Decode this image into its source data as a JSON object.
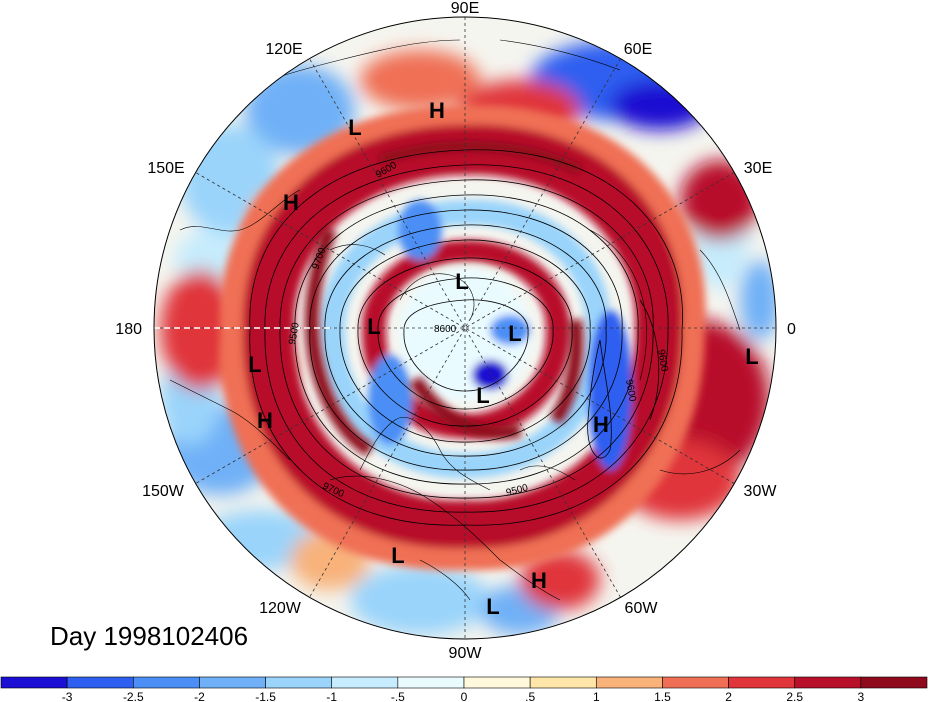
{
  "title": "Day 1998102406",
  "longitude_labels": [
    "90E",
    "60E",
    "30E",
    "0",
    "30W",
    "60W",
    "90W",
    "120W",
    "150W",
    "180",
    "150E",
    "120E"
  ],
  "pressure_systems": [
    {
      "type": "H",
      "name": "pressure-high"
    },
    {
      "type": "L",
      "name": "pressure-low"
    },
    {
      "type": "H",
      "name": "pressure-high"
    },
    {
      "type": "L",
      "name": "pressure-low"
    },
    {
      "type": "L",
      "name": "pressure-low"
    },
    {
      "type": "L",
      "name": "pressure-low"
    },
    {
      "type": "L",
      "name": "pressure-low"
    },
    {
      "type": "L",
      "name": "pressure-low"
    },
    {
      "type": "H",
      "name": "pressure-high"
    },
    {
      "type": "L",
      "name": "pressure-low"
    },
    {
      "type": "H",
      "name": "pressure-high"
    },
    {
      "type": "L",
      "name": "pressure-low"
    },
    {
      "type": "L",
      "name": "pressure-low"
    },
    {
      "type": "H",
      "name": "pressure-high"
    },
    {
      "type": "L",
      "name": "pressure-low"
    }
  ],
  "contour_labels": [
    "9600",
    "9700",
    "9500",
    "8600",
    "9600",
    "9600",
    "9500",
    "9700"
  ],
  "colorbar": {
    "ticks": [
      "-3",
      "-2.5",
      "-2",
      "-1.5",
      "-1",
      "-.5",
      "0",
      ".5",
      "1",
      "1.5",
      "2",
      "2.5",
      "3"
    ],
    "colors": [
      "#1a0fd2",
      "#2f5ff0",
      "#4b8ef5",
      "#6fb0f7",
      "#9ad4fb",
      "#c6ecfd",
      "#eafbff",
      "#fff8dc",
      "#fde6a8",
      "#f8b27a",
      "#ef6f55",
      "#e0353a",
      "#b8102a",
      "#8e0a1c"
    ]
  }
}
